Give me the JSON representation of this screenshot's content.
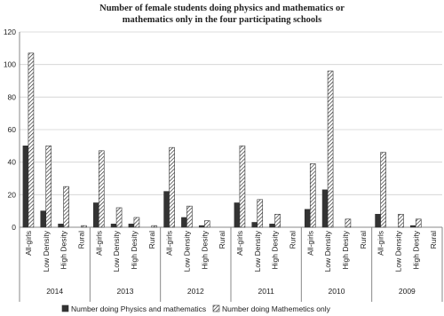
{
  "chart_data": {
    "type": "bar",
    "title": "Number of female students doing physics and mathematics or mathematics only in the four participating schools",
    "groups": [
      "2014",
      "2013",
      "2012",
      "2011",
      "2010",
      "2009"
    ],
    "categories": [
      "All-girls",
      "Low Density",
      "High Desity",
      "Rural",
      "All-girls",
      "Low Density",
      "High Desity",
      "Rural",
      "All-girls",
      "Low Density",
      "High Desity",
      "Rural",
      "All-girls",
      "Low Density",
      "High Desity",
      "Rural",
      "All-girls",
      "Low Density",
      "High Desity",
      "Rural",
      "All-girls",
      "Low Density",
      "High Desity",
      "Rural"
    ],
    "series": [
      {
        "name": "Number doing Physics and mathematics",
        "color": "#333333",
        "pattern": "solid",
        "values": [
          50,
          10,
          2,
          0,
          15,
          2,
          2,
          0,
          22,
          6,
          1,
          0,
          15,
          3,
          2,
          0,
          11,
          23,
          0,
          0,
          8,
          0,
          1,
          0
        ]
      },
      {
        "name": "Number doing Mathemetics only",
        "color": "#333333",
        "pattern": "hatch",
        "values": [
          107,
          50,
          25,
          1,
          47,
          12,
          6,
          1,
          49,
          13,
          4,
          0,
          50,
          17,
          8,
          0,
          39,
          96,
          5,
          0,
          46,
          8,
          5,
          0
        ]
      }
    ],
    "ylim": [
      0,
      120
    ],
    "yticks": [
      0,
      20,
      40,
      60,
      80,
      100,
      120
    ],
    "grid": true
  }
}
